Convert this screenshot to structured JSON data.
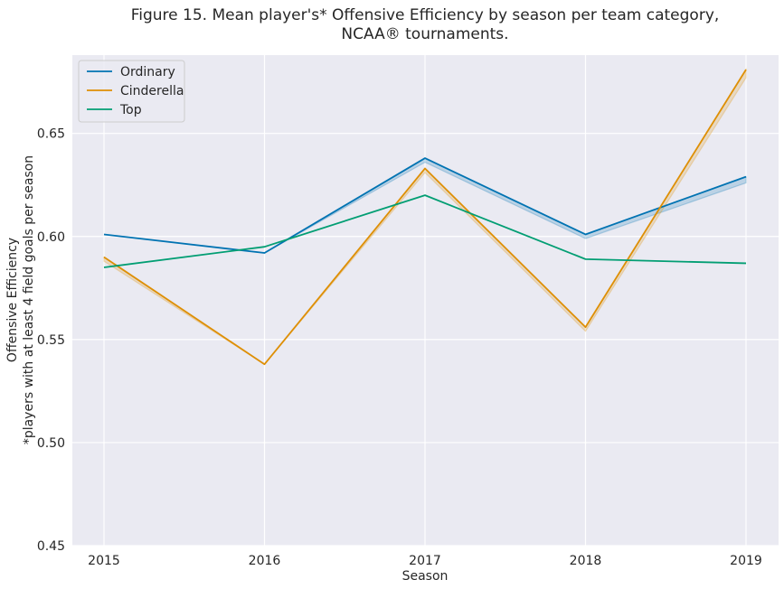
{
  "chart_data": {
    "type": "line",
    "title_lines": [
      "Figure 15. Mean player's* Offensive Efficiency by season per team category,",
      "NCAA® tournaments."
    ],
    "xlabel": "Season",
    "ylabel_lines": [
      "Offensive Efficiency",
      "*players with at least 4 field goals per season"
    ],
    "categories": [
      "2015",
      "2016",
      "2017",
      "2018",
      "2019"
    ],
    "yticks": [
      "0.45",
      "0.50",
      "0.55",
      "0.60",
      "0.65"
    ],
    "ylim": [
      0.45,
      0.688
    ],
    "grid": true,
    "legend_position": "top-left",
    "series": [
      {
        "name": "Ordinary",
        "color": "#0173b2",
        "values": [
          0.601,
          0.592,
          0.638,
          0.601,
          0.629
        ],
        "band": [
          0.601,
          0.592,
          0.636,
          0.599,
          0.626
        ]
      },
      {
        "name": "Cinderella",
        "color": "#de8f05",
        "values": [
          0.59,
          0.538,
          0.633,
          0.556,
          0.681
        ],
        "band": [
          0.588,
          0.538,
          0.631,
          0.554,
          0.677
        ]
      },
      {
        "name": "Top",
        "color": "#029e73",
        "values": [
          0.585,
          0.595,
          0.62,
          0.589,
          0.587
        ],
        "band": [
          0.585,
          0.595,
          0.62,
          0.589,
          0.587
        ]
      }
    ]
  }
}
